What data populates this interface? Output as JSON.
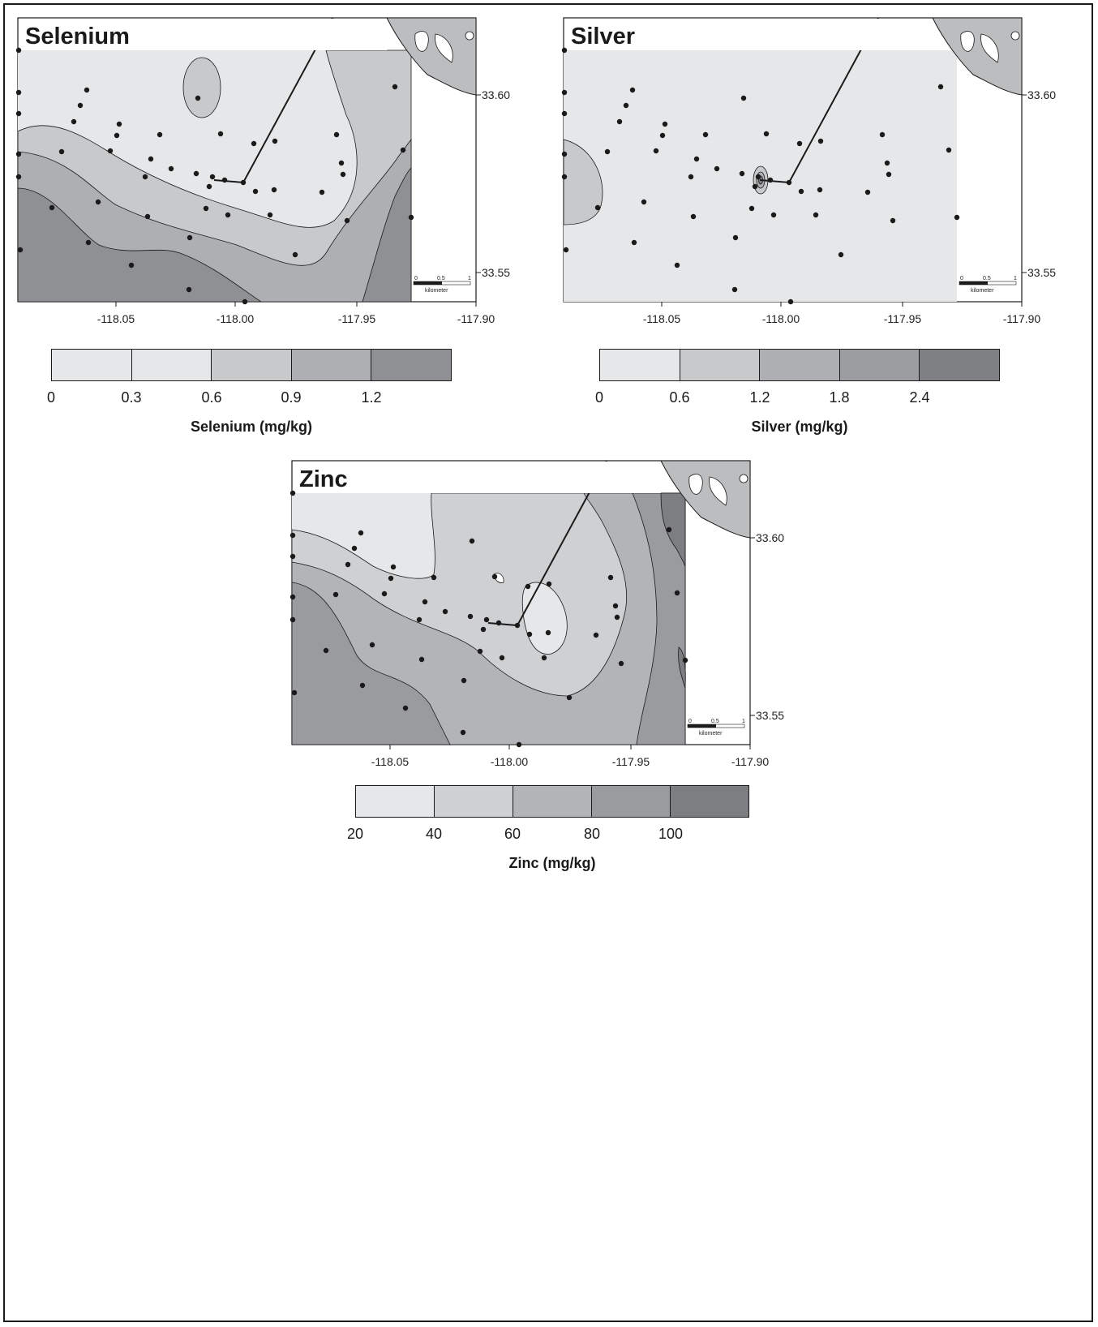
{
  "panels": [
    {
      "id": "selenium",
      "title": "Selenium",
      "legend_title": "Selenium (mg/kg)",
      "legend_values": [
        "0",
        "0.3",
        "0.6",
        "0.9",
        "1.2"
      ],
      "legend_colors": [
        "#e6e7e8",
        "#e6e7e8",
        "#c8c9cb",
        "#aeafb2",
        "#8f9093"
      ]
    },
    {
      "id": "silver",
      "title": "Silver",
      "legend_title": "Silver (mg/kg)",
      "legend_values": [
        "0",
        "0.6",
        "1.2",
        "1.8",
        "2.4"
      ],
      "legend_colors": [
        "#e6e7e8",
        "#c8c9cb",
        "#aeafb2",
        "#9c9da0",
        "#7f8083"
      ]
    },
    {
      "id": "zinc",
      "title": "Zinc",
      "legend_title": "Zinc (mg/kg)",
      "legend_values": [
        "20",
        "40",
        "60",
        "80",
        "100"
      ],
      "legend_colors": [
        "#e6e7e8",
        "#cfd0d2",
        "#b3b4b7",
        "#9a9b9e",
        "#7d7e81"
      ]
    }
  ],
  "axes": {
    "x_ticks": [
      "-118.05",
      "-118.00",
      "-117.95",
      "-117.90"
    ],
    "y_ticks": [
      "33.60",
      "33.55"
    ]
  },
  "scale_bar": {
    "labels": [
      "0",
      "0.5",
      "1"
    ],
    "unit": "kilometer"
  },
  "colors": {
    "land": "#bcbdbf",
    "water_bg": "#ffffff",
    "frame": "#1a1a1a"
  }
}
